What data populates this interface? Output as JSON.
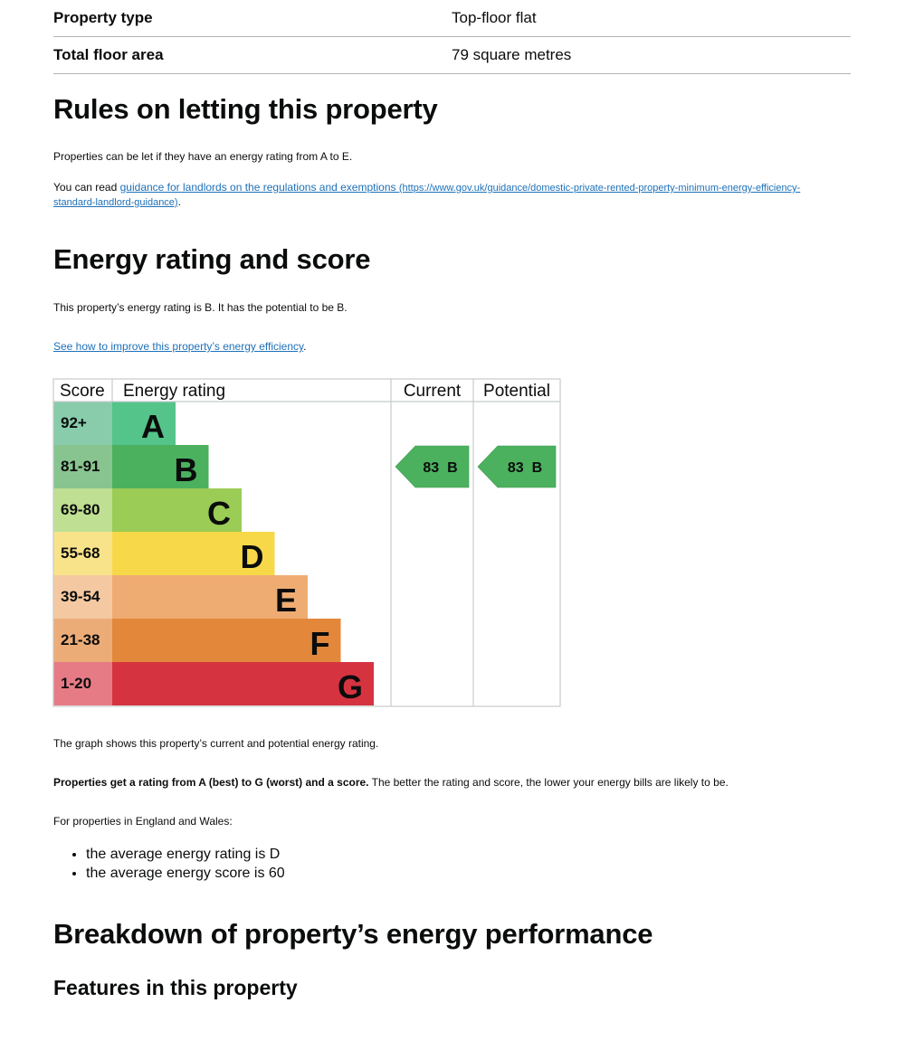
{
  "summary": [
    {
      "key": "Property type",
      "value": "Top-floor flat"
    },
    {
      "key": "Total floor area",
      "value": "79 square metres"
    }
  ],
  "letting": {
    "heading": "Rules on letting this property",
    "para1": "Properties can be let if they have an energy rating from A to E.",
    "para2_prefix": "You can read ",
    "link_text": "guidance for landlords on the regulations and exemptions",
    "link_url_text": "(https://www.gov.uk/guidance/domestic-private-rented-property-minimum-energy-efficiency-standard-landlord-guidance)",
    "para2_suffix": "."
  },
  "rating": {
    "heading": "Energy rating and score",
    "para1": "This property’s energy rating is B. It has the potential to be B.",
    "improve_link": "See how to improve this property’s energy efficiency",
    "improve_suffix": ".",
    "graph_caption": "The graph shows this property’s current and potential energy rating.",
    "scale_bold": "Properties get a rating from A (best) to G (worst) and a score.",
    "scale_rest": " The better the rating and score, the lower your energy bills are likely to be.",
    "average_intro": "For properties in England and Wales:",
    "averages": [
      "the average energy rating is D",
      "the average energy score is 60"
    ]
  },
  "chart_data": {
    "type": "table",
    "headers": [
      "Score",
      "Energy rating",
      "Current",
      "Potential"
    ],
    "bands": [
      {
        "score": "92+",
        "letter": "A",
        "color": "#55c48a",
        "score_bg": "#88ccab"
      },
      {
        "score": "81-91",
        "letter": "B",
        "color": "#4bb15f",
        "score_bg": "#88c48f"
      },
      {
        "score": "69-80",
        "letter": "C",
        "color": "#9bcc55",
        "score_bg": "#bfdf92"
      },
      {
        "score": "55-68",
        "letter": "D",
        "color": "#f6d849",
        "score_bg": "#f9e38a"
      },
      {
        "score": "39-54",
        "letter": "E",
        "color": "#efac72",
        "score_bg": "#f4c9a1"
      },
      {
        "score": "21-38",
        "letter": "F",
        "color": "#e3873b",
        "score_bg": "#ecac78"
      },
      {
        "score": "1-20",
        "letter": "G",
        "color": "#d63341",
        "score_bg": "#e67b86"
      }
    ],
    "current": {
      "score": 83,
      "letter": "B",
      "label": "83  B"
    },
    "potential": {
      "score": 83,
      "letter": "B",
      "label": "83  B"
    }
  },
  "breakdown": {
    "heading": "Breakdown of property’s energy performance",
    "subheading": "Features in this property"
  }
}
